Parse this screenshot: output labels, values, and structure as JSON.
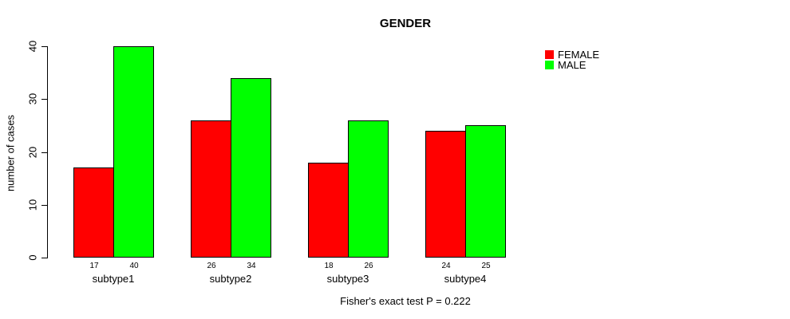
{
  "title": "GENDER",
  "legend": {
    "items": [
      {
        "label": "FEMALE",
        "color": "#FF0000"
      },
      {
        "label": "MALE",
        "color": "#00FF00"
      }
    ]
  },
  "chart_data": {
    "type": "bar",
    "grouped": true,
    "title": "GENDER",
    "xlabel": "",
    "ylabel": "number of cases",
    "categories": [
      "subtype1",
      "subtype2",
      "subtype3",
      "subtype4"
    ],
    "series": [
      {
        "name": "FEMALE",
        "color": "#FF0000",
        "values": [
          17,
          26,
          18,
          24
        ]
      },
      {
        "name": "MALE",
        "color": "#00FF00",
        "values": [
          40,
          34,
          26,
          25
        ]
      }
    ],
    "ylim": [
      0,
      40
    ],
    "yticks": [
      0,
      10,
      20,
      30,
      40
    ],
    "bar_value_labels_shown": true,
    "grid": false,
    "legend_position": "right",
    "annotation": "Fisher's exact test P = 0.222"
  }
}
